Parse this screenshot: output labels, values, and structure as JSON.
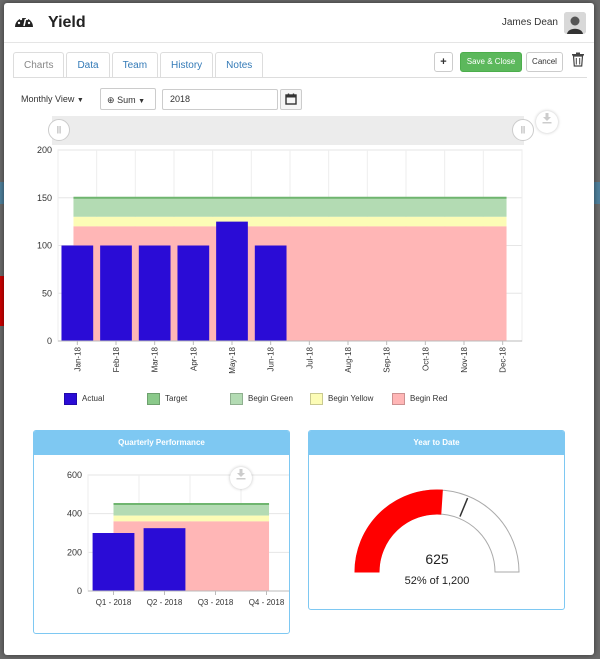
{
  "window": {
    "title": "Yield",
    "user_name": "James Dean"
  },
  "tabs": [
    {
      "label": "Charts",
      "active": true
    },
    {
      "label": "Data",
      "active": false
    },
    {
      "label": "Team",
      "active": false
    },
    {
      "label": "History",
      "active": false
    },
    {
      "label": "Notes",
      "active": false
    }
  ],
  "actions": {
    "add_label": "+",
    "save_close_label": "Save & Close",
    "cancel_label": "Cancel"
  },
  "toolbar": {
    "view_label": "Monthly View",
    "aggregate_label": "Sum",
    "year_value": "2018"
  },
  "colors": {
    "actual": "#2a0cd6",
    "target": "#8ac98a",
    "begin_green": "#b3dbb3",
    "begin_yellow": "#fcfcb6",
    "begin_red": "#ffb6b6",
    "header": "#7ec8f2",
    "gauge": "#ff0000"
  },
  "chart_data": [
    {
      "type": "bar",
      "categories": [
        "Jan-18",
        "Feb-18",
        "Mar-18",
        "Apr-18",
        "May-18",
        "Jun-18",
        "Jul-18",
        "Aug-18",
        "Sep-18",
        "Oct-18",
        "Nov-18",
        "Dec-18"
      ],
      "series": [
        {
          "name": "Actual",
          "values": [
            100,
            100,
            100,
            100,
            125,
            100,
            null,
            null,
            null,
            null,
            null,
            null
          ]
        },
        {
          "name": "Target",
          "values": [
            150,
            150,
            150,
            150,
            150,
            150,
            150,
            150,
            150,
            150,
            150,
            150
          ]
        }
      ],
      "bands": [
        {
          "name": "Begin Green",
          "from": 130,
          "to": 150
        },
        {
          "name": "Begin Yellow",
          "from": 120,
          "to": 130
        },
        {
          "name": "Begin Red",
          "from": 0,
          "to": 120
        }
      ],
      "yticks": [
        0,
        50,
        100,
        150,
        200
      ],
      "ylim": [
        0,
        200
      ],
      "legend": [
        "Actual",
        "Target",
        "Begin Green",
        "Begin Yellow",
        "Begin Red"
      ],
      "legend_position": "bottom",
      "grid": true
    },
    {
      "type": "bar",
      "title": "Quarterly Performance",
      "categories": [
        "Q1 - 2018",
        "Q2 - 2018",
        "Q3 - 2018",
        "Q4 - 2018"
      ],
      "series": [
        {
          "name": "Actual",
          "values": [
            300,
            325,
            null,
            null
          ]
        },
        {
          "name": "Target",
          "values": [
            450,
            450,
            450,
            450
          ]
        }
      ],
      "bands": [
        {
          "name": "Begin Green",
          "from": 390,
          "to": 450
        },
        {
          "name": "Begin Yellow",
          "from": 360,
          "to": 390
        },
        {
          "name": "Begin Red",
          "from": 0,
          "to": 360
        }
      ],
      "yticks": [
        0,
        200,
        400,
        600
      ],
      "ylim": [
        0,
        600
      ],
      "grid": true
    }
  ],
  "ytd": {
    "title": "Year to Date",
    "value": 625,
    "value_label": "625",
    "max": 1200,
    "target_fraction": 0.625,
    "caption": "52% of 1,200"
  }
}
